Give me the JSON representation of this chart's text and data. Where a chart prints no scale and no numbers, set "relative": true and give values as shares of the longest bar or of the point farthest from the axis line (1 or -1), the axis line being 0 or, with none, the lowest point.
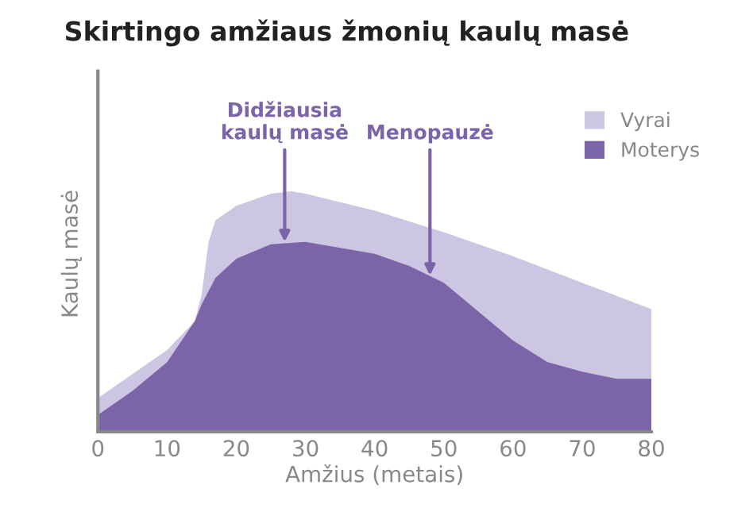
{
  "chart_data": {
    "type": "area",
    "title": "Skirtingo amžiaus žmonių kaulų masė",
    "xlabel": "Amžius (metais)",
    "ylabel": "Kaulų masė",
    "relative": true,
    "legend": "right",
    "grid": false,
    "xlim": [
      0,
      80
    ],
    "xticks": [
      0,
      10,
      20,
      30,
      40,
      50,
      60,
      70,
      80
    ],
    "series": [
      {
        "name": "Vyrai",
        "color": "#cdc6e2",
        "x": [
          0,
          5,
          10,
          14,
          15,
          16,
          17,
          20,
          25,
          28,
          30,
          40,
          50,
          60,
          70,
          80
        ],
        "values": [
          0.14,
          0.24,
          0.34,
          0.46,
          0.57,
          0.79,
          0.88,
          0.94,
          0.99,
          1.0,
          0.99,
          0.92,
          0.83,
          0.73,
          0.62,
          0.51
        ]
      },
      {
        "name": "Moterys",
        "color": "#7b64a8",
        "x": [
          0,
          5,
          10,
          14,
          15,
          17,
          20,
          25,
          30,
          40,
          45,
          50,
          55,
          60,
          65,
          70,
          75,
          80
        ],
        "values": [
          0.07,
          0.17,
          0.29,
          0.46,
          0.53,
          0.64,
          0.72,
          0.78,
          0.79,
          0.74,
          0.69,
          0.62,
          0.5,
          0.38,
          0.29,
          0.25,
          0.22,
          0.22
        ]
      }
    ],
    "annotations": [
      {
        "text": "Didžiausia\nkaulų masė",
        "x": 27,
        "y": 0.79
      },
      {
        "text": "Menopauzė",
        "x": 48,
        "y": 0.65
      }
    ]
  }
}
